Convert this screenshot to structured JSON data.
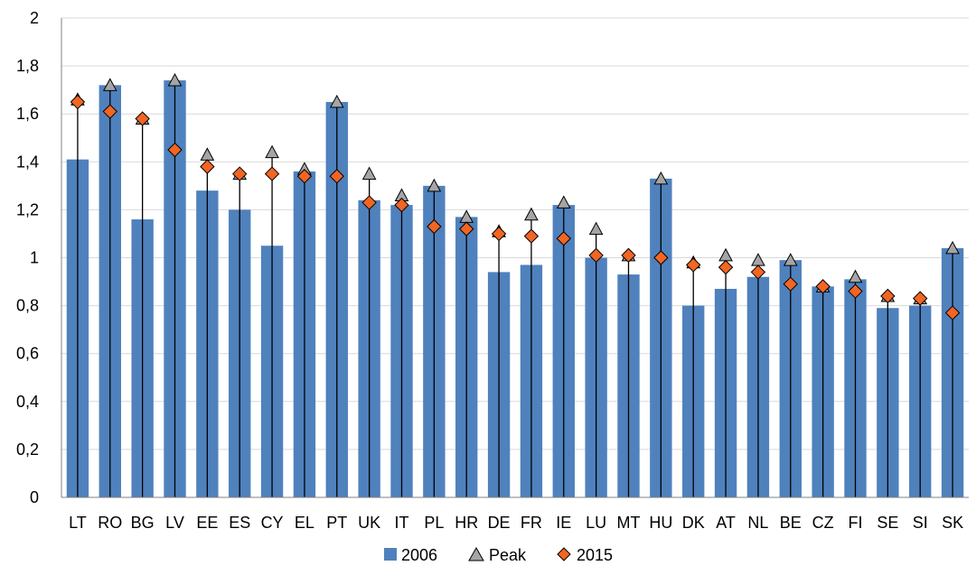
{
  "chart_data": {
    "type": "bar",
    "categories": [
      "LT",
      "RO",
      "BG",
      "LV",
      "EE",
      "ES",
      "CY",
      "EL",
      "PT",
      "UK",
      "IT",
      "PL",
      "HR",
      "DE",
      "FR",
      "IE",
      "LU",
      "MT",
      "HU",
      "DK",
      "AT",
      "NL",
      "BE",
      "CZ",
      "FI",
      "SE",
      "SI",
      "SK"
    ],
    "series": [
      {
        "name": "2006",
        "kind": "bar",
        "values": [
          1.41,
          1.72,
          1.16,
          1.74,
          1.28,
          1.2,
          1.05,
          1.36,
          1.65,
          1.24,
          1.22,
          1.3,
          1.17,
          0.94,
          0.97,
          1.22,
          1.0,
          0.93,
          1.33,
          0.8,
          0.87,
          0.92,
          0.99,
          0.88,
          0.91,
          0.79,
          0.8,
          1.04
        ]
      },
      {
        "name": "Peak",
        "kind": "triangle-marker",
        "values": [
          1.66,
          1.72,
          1.58,
          1.74,
          1.43,
          1.35,
          1.44,
          1.37,
          1.65,
          1.35,
          1.26,
          1.3,
          1.17,
          1.11,
          1.18,
          1.23,
          1.12,
          1.01,
          1.33,
          0.98,
          1.01,
          0.99,
          0.99,
          0.88,
          0.92,
          0.84,
          0.83,
          1.04
        ]
      },
      {
        "name": "2015",
        "kind": "diamond-marker",
        "values": [
          1.65,
          1.61,
          1.58,
          1.45,
          1.38,
          1.35,
          1.35,
          1.34,
          1.34,
          1.23,
          1.22,
          1.13,
          1.12,
          1.1,
          1.09,
          1.08,
          1.01,
          1.01,
          1.0,
          0.97,
          0.96,
          0.94,
          0.89,
          0.88,
          0.86,
          0.84,
          0.83,
          0.77
        ]
      }
    ],
    "y_ticks": [
      "0",
      "0,2",
      "0,4",
      "0,6",
      "0,8",
      "1",
      "1,2",
      "1,4",
      "1,6",
      "1,8",
      "2"
    ],
    "ylim": [
      0,
      2
    ],
    "grid": true,
    "legend_position": "bottom",
    "xlabel": "",
    "ylabel": "",
    "title": ""
  },
  "colors": {
    "bar": "#4F81BD",
    "peak": "#A5A5A5",
    "y2015": "#F26522",
    "grid": "#D9D9D9",
    "axis": "#000000"
  },
  "legend": {
    "items": [
      {
        "label": "2006",
        "icon": "square-icon"
      },
      {
        "label": "Peak",
        "icon": "triangle-icon"
      },
      {
        "label": "2015",
        "icon": "diamond-icon"
      }
    ]
  }
}
